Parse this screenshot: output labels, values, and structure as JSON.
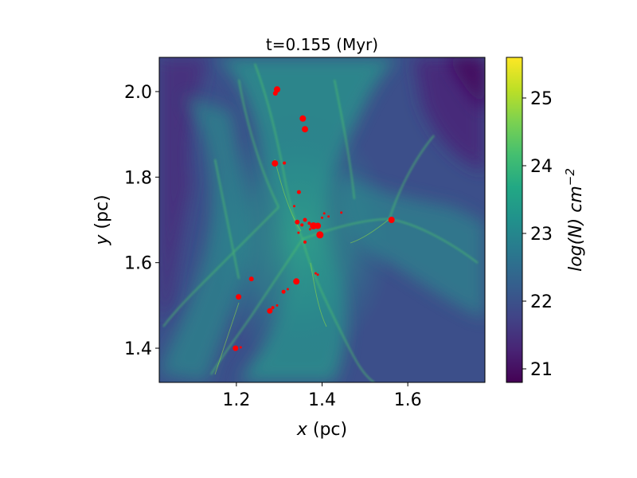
{
  "chart_data": {
    "type": "heatmap",
    "title": "t=0.155 (Myr)",
    "xlabel": "x",
    "xlabel_unit": " (pc)",
    "ylabel": "y",
    "ylabel_unit": " (pc)",
    "xlim": [
      1.02,
      1.78
    ],
    "ylim": [
      1.32,
      2.08
    ],
    "x_ticks": [
      1.2,
      1.4,
      1.6
    ],
    "x_tick_labels": [
      "1.2",
      "1.4",
      "1.6"
    ],
    "y_ticks": [
      1.4,
      1.6,
      1.8,
      2.0
    ],
    "y_tick_labels": [
      "1.4",
      "1.6",
      "1.8",
      "2.0"
    ],
    "colorbar": {
      "label_base": "log(N) cm",
      "label_exp": "−2",
      "colormap": "viridis",
      "range": [
        20.8,
        25.6
      ],
      "ticks": [
        21,
        22,
        23,
        24,
        25
      ],
      "tick_labels": [
        "21",
        "22",
        "23",
        "24",
        "25"
      ]
    },
    "marker_color": "#ff0000",
    "points": [
      {
        "x": 1.295,
        "y": 2.005,
        "size": 4
      },
      {
        "x": 1.291,
        "y": 1.996,
        "size": 3
      },
      {
        "x": 1.355,
        "y": 1.937,
        "size": 4
      },
      {
        "x": 1.36,
        "y": 1.912,
        "size": 4
      },
      {
        "x": 1.29,
        "y": 1.832,
        "size": 4
      },
      {
        "x": 1.312,
        "y": 1.833,
        "size": 2
      },
      {
        "x": 1.346,
        "y": 1.765,
        "size": 2.5
      },
      {
        "x": 1.335,
        "y": 1.732,
        "size": 1.5
      },
      {
        "x": 1.342,
        "y": 1.695,
        "size": 3
      },
      {
        "x": 1.36,
        "y": 1.7,
        "size": 2.5
      },
      {
        "x": 1.37,
        "y": 1.692,
        "size": 2
      },
      {
        "x": 1.353,
        "y": 1.688,
        "size": 2
      },
      {
        "x": 1.38,
        "y": 1.686,
        "size": 4.5
      },
      {
        "x": 1.39,
        "y": 1.686,
        "size": 4
      },
      {
        "x": 1.395,
        "y": 1.665,
        "size": 4.5
      },
      {
        "x": 1.4,
        "y": 1.705,
        "size": 1.5
      },
      {
        "x": 1.405,
        "y": 1.715,
        "size": 1.5
      },
      {
        "x": 1.415,
        "y": 1.708,
        "size": 1.5
      },
      {
        "x": 1.445,
        "y": 1.717,
        "size": 1.5
      },
      {
        "x": 1.36,
        "y": 1.648,
        "size": 2
      },
      {
        "x": 1.372,
        "y": 1.678,
        "size": 1.5
      },
      {
        "x": 1.345,
        "y": 1.67,
        "size": 1.5
      },
      {
        "x": 1.562,
        "y": 1.7,
        "size": 4
      },
      {
        "x": 1.235,
        "y": 1.562,
        "size": 3
      },
      {
        "x": 1.34,
        "y": 1.556,
        "size": 4
      },
      {
        "x": 1.385,
        "y": 1.575,
        "size": 1.5
      },
      {
        "x": 1.39,
        "y": 1.572,
        "size": 1.5
      },
      {
        "x": 1.32,
        "y": 1.538,
        "size": 1.5
      },
      {
        "x": 1.31,
        "y": 1.532,
        "size": 2.5
      },
      {
        "x": 1.205,
        "y": 1.52,
        "size": 3.5
      },
      {
        "x": 1.295,
        "y": 1.5,
        "size": 1.5
      },
      {
        "x": 1.285,
        "y": 1.495,
        "size": 2
      },
      {
        "x": 1.278,
        "y": 1.487,
        "size": 3.5
      },
      {
        "x": 1.198,
        "y": 1.4,
        "size": 3.5
      },
      {
        "x": 1.21,
        "y": 1.402,
        "size": 1.5
      }
    ]
  }
}
